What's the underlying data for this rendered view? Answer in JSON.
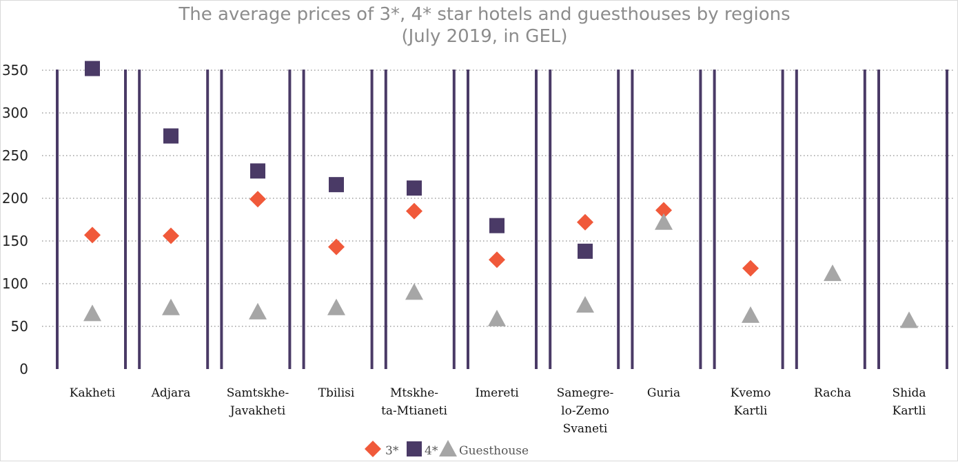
{
  "chart_data": {
    "type": "scatter",
    "title": "The average prices of 3*, 4* star hotels and guesthouses by regions",
    "subtitle": "(July 2019, in GEL)",
    "categories": [
      [
        "Kakheti"
      ],
      [
        "Adjara"
      ],
      [
        "Samtskhe-",
        "Javakheti"
      ],
      [
        "Tbilisi"
      ],
      [
        "Mtskhe-",
        "ta-Mtianeti"
      ],
      [
        "Imereti"
      ],
      [
        "Samegre-",
        "lo-Zemo",
        "Svaneti"
      ],
      [
        "Guria"
      ],
      [
        "Kvemo",
        "Kartli"
      ],
      [
        "Racha"
      ],
      [
        "Shida",
        "Kartli"
      ]
    ],
    "series": [
      {
        "name": "3*",
        "marker": "diamond",
        "color": "#f0593a",
        "values": [
          157,
          156,
          199,
          143,
          185,
          128,
          172,
          186,
          118,
          null,
          null
        ]
      },
      {
        "name": "4*",
        "marker": "square",
        "color": "#4a3a66",
        "values": [
          352,
          273,
          232,
          216,
          212,
          168,
          138,
          null,
          null,
          null,
          null
        ]
      },
      {
        "name": "Guesthouse",
        "marker": "triangle",
        "color": "#a6a6a6",
        "values": [
          65,
          72,
          67,
          72,
          90,
          59,
          75,
          172,
          63,
          112,
          57
        ]
      }
    ],
    "ylim": [
      0,
      350
    ],
    "yticks": [
      0,
      50,
      100,
      150,
      200,
      250,
      300,
      350
    ],
    "ylabel": "",
    "xlabel": "",
    "grid": "horizontal dotted",
    "legend_position": "bottom-center",
    "bar_color": "#4a3a66"
  }
}
